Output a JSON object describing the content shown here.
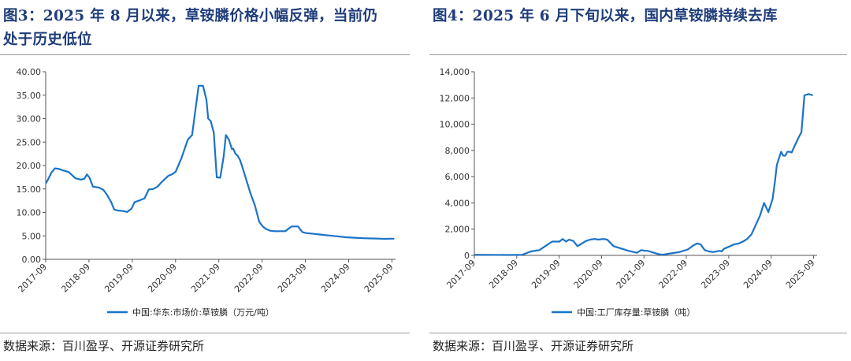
{
  "left": {
    "title": "图3：2025 年 8 月以来，草铵膦价格小幅反弹，当前仍处于历史低位",
    "title_line1": "图3：2025 年 8 月以来，草铵膦价格小幅反弹，当前仍",
    "title_line2": "处于历史低位",
    "source": "数据来源：百川盈孚、开源证券研究所"
  },
  "right": {
    "title": "图4：2025 年 6 月下旬以来，国内草铵膦持续去库",
    "source": "数据来源：百川盈孚、开源证券研究所"
  },
  "colors": {
    "line": "#1a73c8",
    "title": "#1f3d7a",
    "axis": "#555555"
  },
  "chart_data": [
    {
      "type": "line",
      "title": "",
      "xlabel": "",
      "ylabel": "",
      "ylim": [
        0,
        40
      ],
      "yticks": [
        "0.00",
        "5.00",
        "10.00",
        "15.00",
        "20.00",
        "25.00",
        "30.00",
        "35.00",
        "40.00"
      ],
      "xticks": [
        "2017-09",
        "2018-09",
        "2019-09",
        "2020-09",
        "2021-09",
        "2022-09",
        "2023-09",
        "2024-09",
        "2025-09"
      ],
      "xlim": [
        2017.667,
        2025.75
      ],
      "grid": false,
      "legend_position": "bottom-center",
      "series": [
        {
          "name": "中国:华东:市场价:草铵膦（万元/吨）",
          "x": [
            2017.67,
            2017.72,
            2017.8,
            2017.88,
            2017.97,
            2018.05,
            2018.2,
            2018.35,
            2018.48,
            2018.56,
            2018.62,
            2018.68,
            2018.76,
            2018.9,
            2019.0,
            2019.08,
            2019.18,
            2019.25,
            2019.33,
            2019.45,
            2019.55,
            2019.65,
            2019.72,
            2019.82,
            2019.95,
            2020.05,
            2020.15,
            2020.25,
            2020.35,
            2020.5,
            2020.6,
            2020.67,
            2020.8,
            2020.95,
            2021.05,
            2021.12,
            2021.2,
            2021.3,
            2021.38,
            2021.42,
            2021.48,
            2021.55,
            2021.62,
            2021.7,
            2021.78,
            2021.83,
            2021.9,
            2021.97,
            2022.0,
            2022.05,
            2022.1,
            2022.15,
            2022.2,
            2022.3,
            2022.4,
            2022.5,
            2022.6,
            2022.68,
            2022.75,
            2022.8,
            2022.85,
            2022.95,
            2023.05,
            2023.2,
            2023.35,
            2023.5,
            2023.55,
            2023.6,
            2023.68,
            2023.8,
            2024.0,
            2024.2,
            2024.4,
            2024.6,
            2024.8,
            2025.0,
            2025.2,
            2025.4,
            2025.5,
            2025.6,
            2025.72
          ],
          "values": [
            16.2,
            17.0,
            18.5,
            19.4,
            19.3,
            19.0,
            18.6,
            17.3,
            17.0,
            17.2,
            18.1,
            17.4,
            15.5,
            15.3,
            14.8,
            13.8,
            12.2,
            10.6,
            10.4,
            10.3,
            10.1,
            10.8,
            12.2,
            12.5,
            13.0,
            14.9,
            15.0,
            15.5,
            16.5,
            17.8,
            18.2,
            18.7,
            21.5,
            25.5,
            26.5,
            31.5,
            37.0,
            37.0,
            34.0,
            30.0,
            29.5,
            27.0,
            17.5,
            17.4,
            22.0,
            26.5,
            25.5,
            23.5,
            23.6,
            22.5,
            22.1,
            21.3,
            20.0,
            17.0,
            14.0,
            11.5,
            8.0,
            7.0,
            6.5,
            6.3,
            6.1,
            6.0,
            6.0,
            6.0,
            7.0,
            7.0,
            6.3,
            5.8,
            5.6,
            5.5,
            5.3,
            5.1,
            4.9,
            4.7,
            4.6,
            4.5,
            4.45,
            4.4,
            4.35,
            4.4,
            4.4
          ]
        }
      ]
    },
    {
      "type": "line",
      "title": "",
      "xlabel": "",
      "ylabel": "",
      "ylim": [
        0,
        14000
      ],
      "yticks": [
        "0",
        "2,000",
        "4,000",
        "6,000",
        "8,000",
        "10,000",
        "12,000",
        "14,000"
      ],
      "xticks": [
        "2017-09",
        "2018-09",
        "2019-09",
        "2020-09",
        "2021-09",
        "2022-09",
        "2023-09",
        "2024-09",
        "2025-09"
      ],
      "xlim": [
        2017.667,
        2025.75
      ],
      "grid": false,
      "legend_position": "bottom-center",
      "series": [
        {
          "name": "中国:工厂库存量:草铵膦（吨）",
          "x": [
            2017.67,
            2018.0,
            2018.5,
            2018.8,
            2019.0,
            2019.2,
            2019.5,
            2019.67,
            2019.75,
            2019.83,
            2019.9,
            2020.0,
            2020.1,
            2020.2,
            2020.3,
            2020.4,
            2020.5,
            2020.6,
            2020.7,
            2020.8,
            2020.95,
            2021.1,
            2021.3,
            2021.5,
            2021.6,
            2021.7,
            2021.75,
            2021.8,
            2021.9,
            2022.0,
            2022.1,
            2022.2,
            2022.3,
            2022.5,
            2022.7,
            2022.85,
            2022.92,
            2023.0,
            2023.1,
            2023.2,
            2023.3,
            2023.45,
            2023.5,
            2023.55,
            2023.7,
            2023.8,
            2023.9,
            2024.0,
            2024.1,
            2024.2,
            2024.3,
            2024.4,
            2024.5,
            2024.6,
            2024.7,
            2024.75,
            2024.8,
            2024.85,
            2024.9,
            2024.95,
            2025.0,
            2025.05,
            2025.1,
            2025.15,
            2025.2,
            2025.3,
            2025.38,
            2025.45,
            2025.55,
            2025.65
          ],
          "values": [
            50,
            40,
            30,
            50,
            300,
            400,
            1050,
            1050,
            1250,
            1050,
            1200,
            1100,
            700,
            900,
            1100,
            1200,
            1250,
            1200,
            1250,
            1200,
            700,
            550,
            350,
            200,
            400,
            350,
            350,
            300,
            200,
            100,
            50,
            100,
            150,
            250,
            450,
            800,
            900,
            850,
            400,
            300,
            250,
            350,
            300,
            500,
            700,
            850,
            900,
            1050,
            1250,
            1600,
            2300,
            3000,
            4000,
            3300,
            4300,
            5500,
            6900,
            7400,
            7900,
            7600,
            7600,
            7900,
            7900,
            7850,
            8200,
            8900,
            9400,
            12200,
            12300,
            12200
          ]
        }
      ]
    }
  ]
}
